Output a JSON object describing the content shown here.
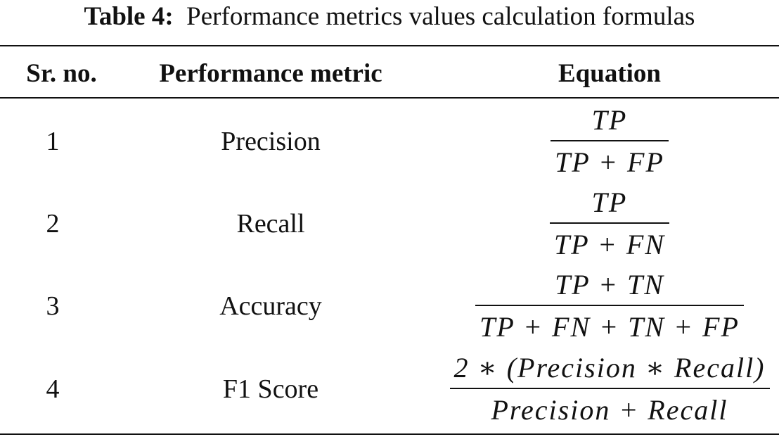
{
  "caption": {
    "label": "Table 4:",
    "text": "Performance metrics values calculation formulas"
  },
  "headers": {
    "sr": "Sr. no.",
    "metric": "Performance metric",
    "equation": "Equation"
  },
  "rows": [
    {
      "sr": "1",
      "metric": "Precision",
      "numerator": "TP",
      "denominator": "TP + FP"
    },
    {
      "sr": "2",
      "metric": "Recall",
      "numerator": "TP",
      "denominator": "TP + FN"
    },
    {
      "sr": "3",
      "metric": "Accuracy",
      "numerator": "TP + TN",
      "denominator": "TP + FN + TN + FP"
    },
    {
      "sr": "4",
      "metric": "F1 Score",
      "numerator": "2 ∗ (Precision ∗ Recall)",
      "denominator": "Precision + Recall"
    }
  ]
}
